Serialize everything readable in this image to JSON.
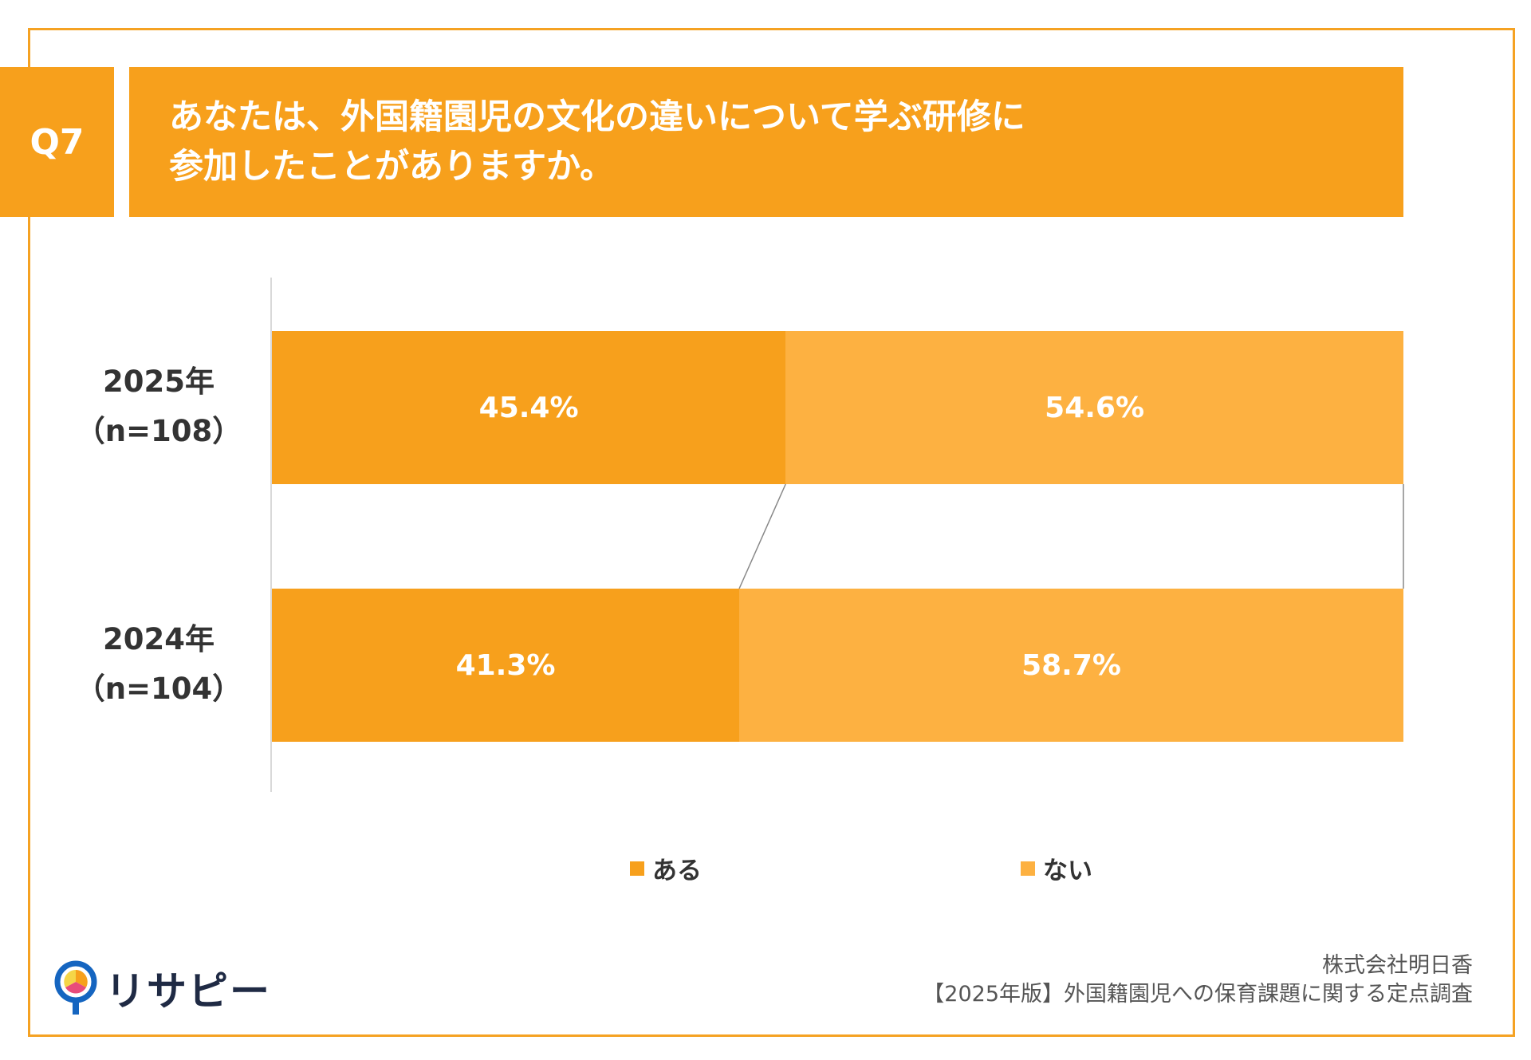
{
  "header": {
    "badge": "Q7",
    "title_lines": [
      "あなたは、外国籍園児の文化の違いについて学ぶ研修に",
      "参加したことがありますか。"
    ]
  },
  "colors": {
    "accent": "#F7A01C",
    "aru": "#F7A01C",
    "nai": "#FDB141",
    "frame": "#F5A223",
    "connector": "#888888"
  },
  "chart_data": {
    "type": "bar",
    "orientation": "horizontal",
    "stacked": true,
    "percent": true,
    "categories": [
      "2025年（n=108）",
      "2024年（n=104）"
    ],
    "category_lines": [
      [
        "2025年",
        "（n=108）"
      ],
      [
        "2024年",
        "（n=104）"
      ]
    ],
    "series": [
      {
        "name": "ある",
        "values": [
          45.4,
          41.3
        ],
        "labels": [
          "45.4%",
          "41.3%"
        ]
      },
      {
        "name": "ない",
        "values": [
          54.6,
          58.7
        ],
        "labels": [
          "54.6%",
          "58.7%"
        ]
      }
    ],
    "xlim": [
      0,
      100
    ],
    "legend": "bottom",
    "grid": false,
    "series_lines": true
  },
  "footer": {
    "logo_text": "リサピー",
    "credit_lines": [
      "株式会社明日香",
      "【2025年版】外国籍園児への保育課題に関する定点調査"
    ]
  }
}
